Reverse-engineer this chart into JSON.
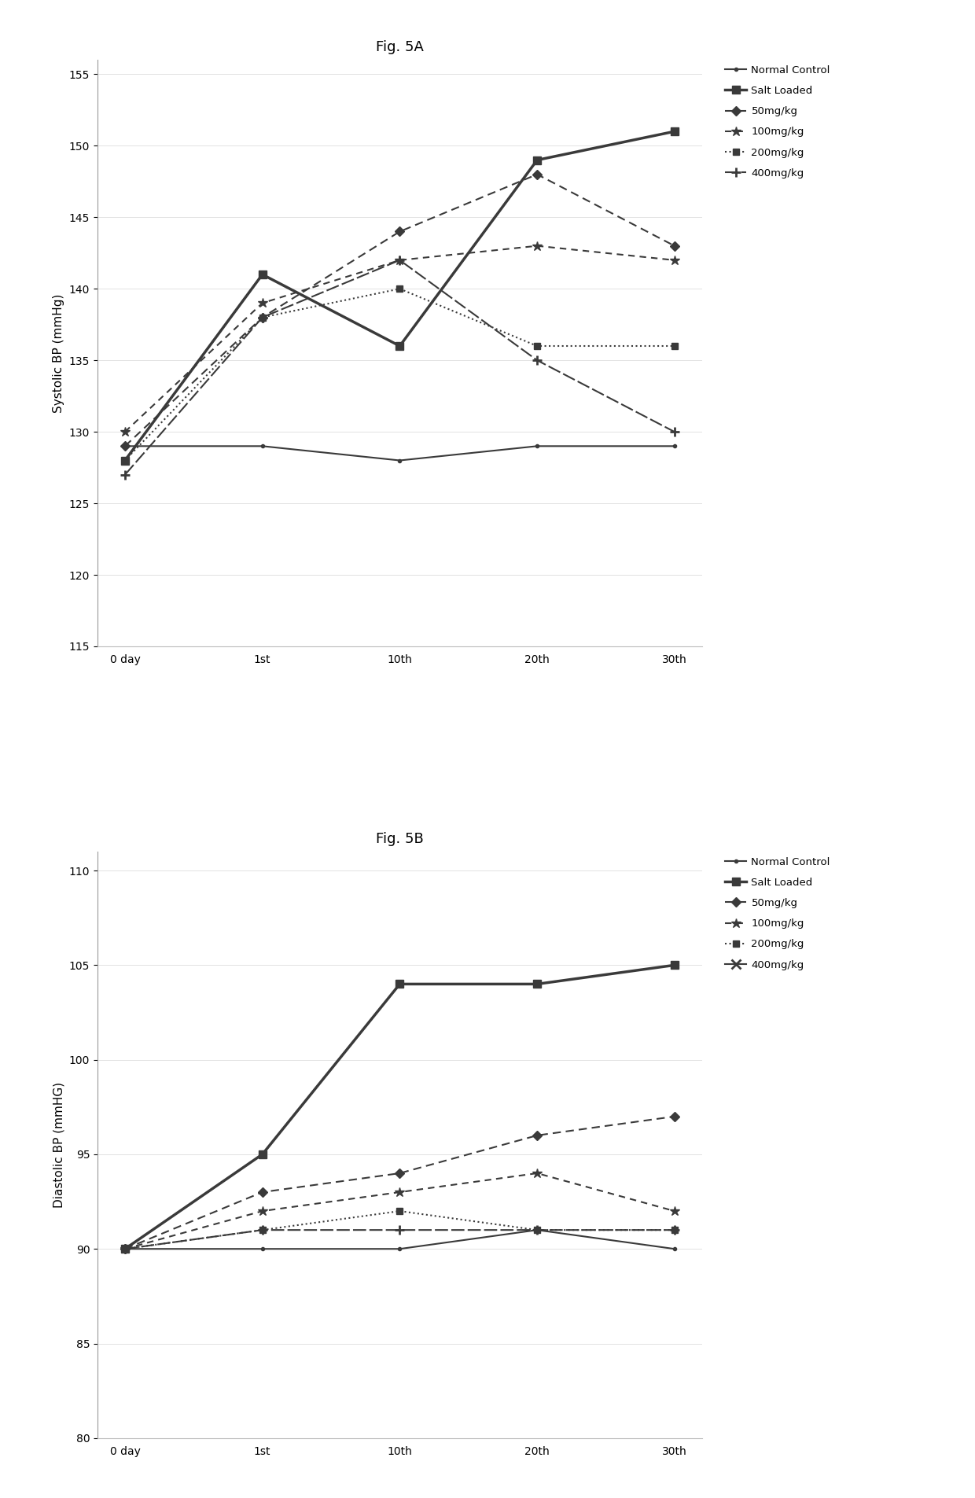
{
  "fig_title_a": "Fig. 5A",
  "fig_title_b": "Fig. 5B",
  "x_labels": [
    "0 day",
    "1st",
    "10th",
    "20th",
    "30th"
  ],
  "x_values": [
    0,
    1,
    2,
    3,
    4
  ],
  "systolic": {
    "ylabel": "Systolic BP (mmHg)",
    "ylim": [
      115,
      156
    ],
    "yticks": [
      115,
      120,
      125,
      130,
      135,
      140,
      145,
      150,
      155
    ],
    "normal_control": [
      129,
      129,
      128,
      129,
      129
    ],
    "salt_loaded": [
      128,
      141,
      136,
      149,
      151
    ],
    "mg50": [
      129,
      138,
      144,
      148,
      143
    ],
    "mg100": [
      130,
      139,
      142,
      143,
      142
    ],
    "mg200": [
      128,
      138,
      140,
      136,
      136
    ],
    "mg400": [
      127,
      138,
      142,
      135,
      130
    ]
  },
  "diastolic": {
    "ylabel": "Diastolic BP (mmHG)",
    "ylim": [
      80,
      111
    ],
    "yticks": [
      80,
      85,
      90,
      95,
      100,
      105,
      110
    ],
    "normal_control": [
      90,
      90,
      90,
      91,
      90
    ],
    "salt_loaded": [
      90,
      95,
      104,
      104,
      105
    ],
    "mg50": [
      90,
      93,
      94,
      96,
      97
    ],
    "mg100": [
      90,
      92,
      93,
      94,
      92
    ],
    "mg200": [
      90,
      91,
      92,
      91,
      91
    ],
    "mg400": [
      90,
      91,
      91,
      91,
      91
    ]
  },
  "legend_labels": [
    "Normal Control",
    "Salt Loaded",
    "50mg/kg",
    "100mg/kg",
    "200mg/kg",
    "400mg/kg"
  ],
  "color": "#3a3a3a",
  "background": "#ffffff"
}
